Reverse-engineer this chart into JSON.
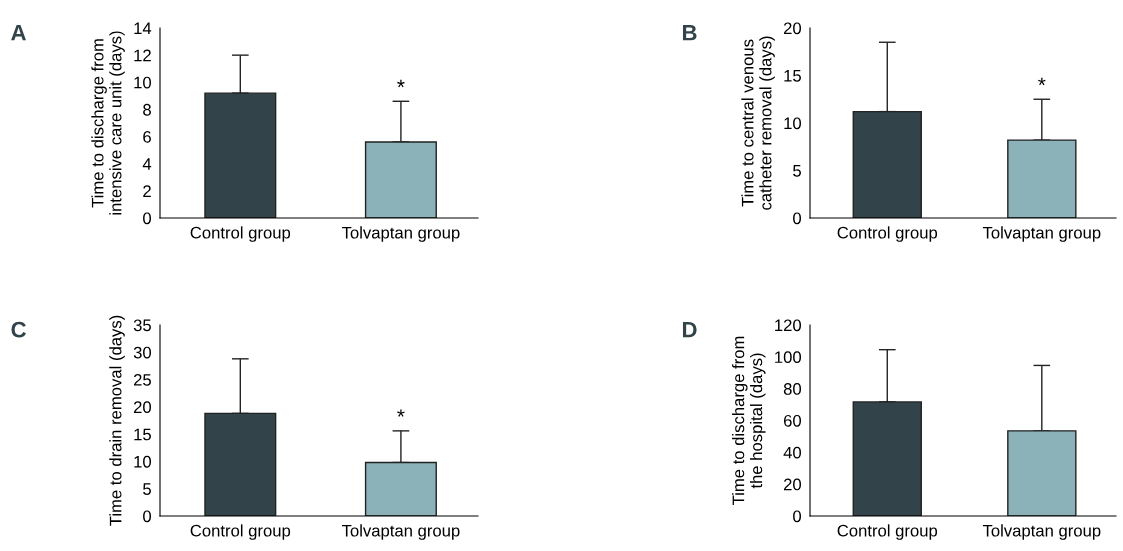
{
  "chart_data": [
    {
      "type": "bar",
      "title": "A",
      "ylabel": "Time to discharge from\nintensive care unit (days)",
      "categories": [
        "Control group",
        "Tolvaptan group"
      ],
      "values": [
        9.2,
        5.6
      ],
      "colors": [
        "#32434a",
        "#8ab2b8"
      ],
      "errors": [
        [
          9.2,
          12.0
        ],
        [
          5.6,
          8.6
        ]
      ],
      "ylim": [
        0,
        14
      ],
      "yticks": [
        0,
        2,
        4,
        6,
        8,
        10,
        12,
        14
      ],
      "grid": false,
      "legend": false,
      "annotations": [
        {
          "text": "*",
          "x": "Tolvaptan group",
          "y": 8.6
        }
      ]
    },
    {
      "type": "bar",
      "title": "B",
      "ylabel": "Time to central venous\ncatheter removal (days)",
      "categories": [
        "Control group",
        "Tolvaptan group"
      ],
      "values": [
        11.2,
        8.2
      ],
      "colors": [
        "#32434a",
        "#8ab2b8"
      ],
      "errors": [
        [
          11.2,
          18.5
        ],
        [
          8.2,
          12.5
        ]
      ],
      "ylim": [
        0,
        20
      ],
      "yticks": [
        0,
        5,
        10,
        15,
        20
      ],
      "grid": false,
      "legend": false,
      "annotations": [
        {
          "text": "*",
          "x": "Tolvaptan group",
          "y": 12.5
        }
      ]
    },
    {
      "type": "bar",
      "title": "C",
      "ylabel": "Time to drain removal (days)",
      "categories": [
        "Control group",
        "Tolvaptan group"
      ],
      "values": [
        18.8,
        9.8
      ],
      "colors": [
        "#32434a",
        "#8ab2b8"
      ],
      "errors": [
        [
          18.8,
          28.8
        ],
        [
          9.8,
          15.6
        ]
      ],
      "ylim": [
        0,
        35
      ],
      "yticks": [
        0,
        5,
        10,
        15,
        20,
        25,
        30,
        35
      ],
      "grid": false,
      "legend": false,
      "annotations": [
        {
          "text": "*",
          "x": "Tolvaptan group",
          "y": 15.6
        }
      ]
    },
    {
      "type": "bar",
      "title": "D",
      "ylabel": "Time to discharge from\nthe hospital (days)",
      "categories": [
        "Control group",
        "Tolvaptan group"
      ],
      "values": [
        71.7,
        53.5
      ],
      "colors": [
        "#32434a",
        "#8ab2b8"
      ],
      "errors": [
        [
          71.7,
          104.5
        ],
        [
          53.5,
          94.6
        ]
      ],
      "ylim": [
        0,
        120
      ],
      "yticks": [
        0,
        20,
        40,
        60,
        80,
        100,
        120
      ],
      "grid": false,
      "legend": false
    }
  ]
}
